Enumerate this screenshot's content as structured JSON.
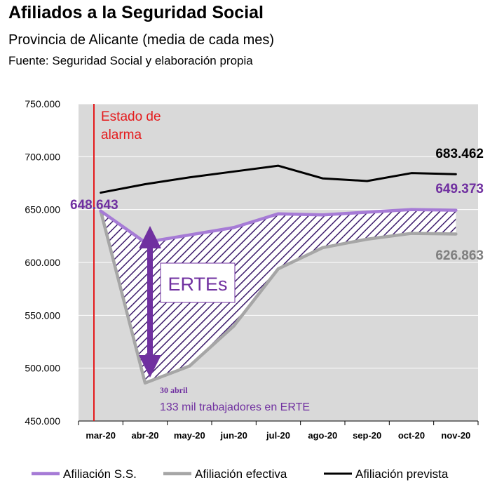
{
  "header": {
    "title": "Afiliados a la Seguridad Social",
    "subtitle": "Provincia de Alicante (media de cada mes)",
    "source": "Fuente: Seguridad Social y elaboración propia"
  },
  "chart_data": {
    "type": "line",
    "categories": [
      "mar-20",
      "abr-20",
      "may-20",
      "jun-20",
      "jul-20",
      "ago-20",
      "sep-20",
      "oct-20",
      "nov-20"
    ],
    "ylim": [
      450000,
      750000
    ],
    "yticks": [
      "450.000",
      "500.000",
      "550.000",
      "600.000",
      "650.000",
      "700.000",
      "750.000"
    ],
    "grid": true,
    "legend_position": "bottom",
    "series": [
      {
        "name": "Afiliación S.S.",
        "color": "#a67bd6",
        "values": [
          648643,
          619000,
          626000,
          633000,
          646000,
          645000,
          647500,
          650000,
          649373
        ]
      },
      {
        "name": "Afiliación efectiva",
        "color": "#a6a6a6",
        "values": [
          648643,
          486000,
          502000,
          540000,
          594000,
          614000,
          622000,
          627500,
          626863
        ]
      },
      {
        "name": "Afiliación prevista",
        "color": "#000000",
        "values": [
          666000,
          674000,
          680500,
          686000,
          691500,
          679500,
          677000,
          684500,
          683462
        ]
      }
    ],
    "annotations": {
      "estado_alarma": "Estado de\nalarma",
      "start_label": "648.643",
      "prevista_end_label": "683.462",
      "ss_end_label": "649.373",
      "efectiva_end_label": "626.863",
      "ertes_box": "ERTEs",
      "date_note": "30 abril",
      "erte_note": "133 mil trabajadores en ERTE"
    },
    "colors": {
      "accent_red": "#e41a1c",
      "purple": "#7030a0",
      "plot_bg": "#d9d9d9"
    }
  }
}
